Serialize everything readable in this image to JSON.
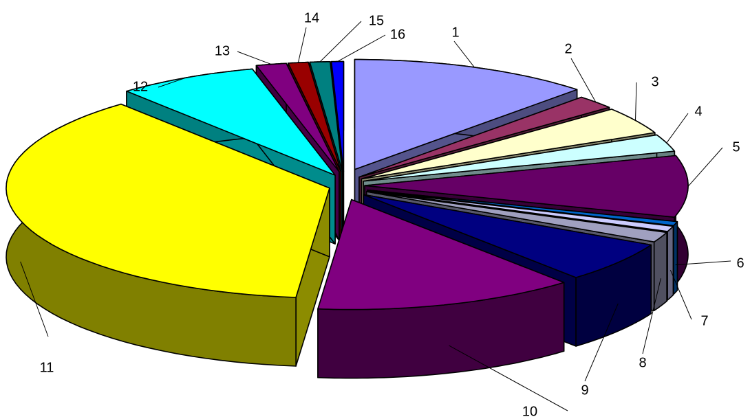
{
  "chart_data": {
    "type": "pie",
    "style": "3d-exploded",
    "title": "",
    "legend": "none",
    "categories": [
      "1",
      "2",
      "3",
      "4",
      "5",
      "6",
      "7",
      "8",
      "9",
      "10",
      "11",
      "12",
      "13",
      "14",
      "15",
      "16"
    ],
    "values": [
      12.0,
      2.0,
      4.0,
      2.5,
      9.0,
      0.6,
      0.8,
      1.5,
      6.0,
      13.0,
      37.0,
      7.0,
      1.5,
      1.0,
      1.0,
      0.6
    ],
    "colors": [
      "#9999FF",
      "#993366",
      "#FFFFCC",
      "#CCFFFF",
      "#660066",
      "#0066CC",
      "#CCCCFF",
      "#A0A0C0",
      "#000080",
      "#800080",
      "#FFFF00",
      "#00FFFF",
      "#800080",
      "#990000",
      "#008080",
      "#0000FF"
    ],
    "labels": [
      "1",
      "2",
      "3",
      "4",
      "5",
      "6",
      "7",
      "8",
      "9",
      "10",
      "11",
      "12",
      "13",
      "14",
      "15",
      "16"
    ]
  }
}
